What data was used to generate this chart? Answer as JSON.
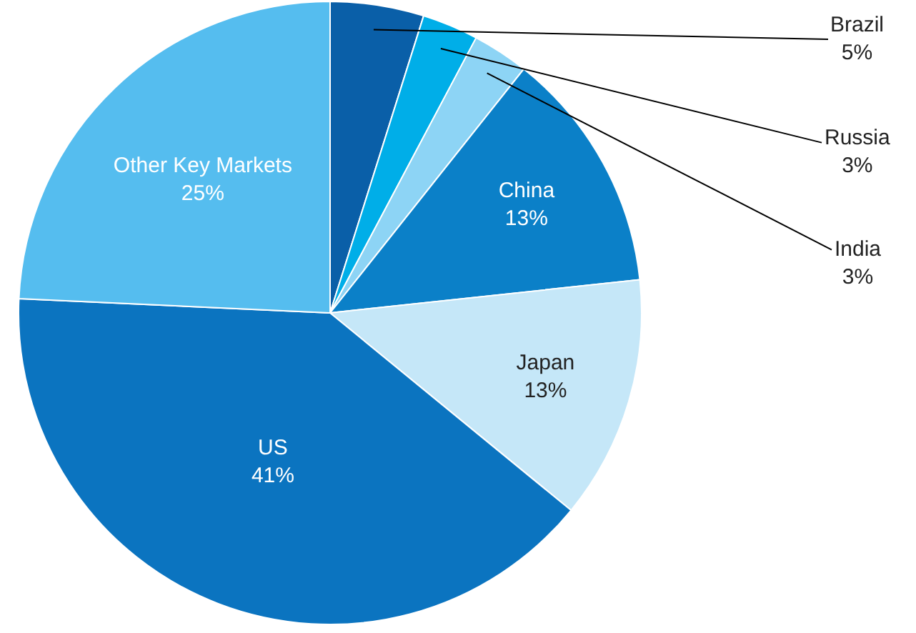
{
  "chart_data": {
    "type": "pie",
    "categories": [
      "Brazil",
      "Russia",
      "India",
      "China",
      "Japan",
      "US",
      "Other Key Markets"
    ],
    "values": [
      5,
      3,
      3,
      13,
      13,
      41,
      25
    ],
    "value_labels": [
      "5%",
      "3%",
      "3%",
      "13%",
      "13%",
      "41%",
      "25%"
    ],
    "colors": [
      "#0a5fa8",
      "#00aee8",
      "#8dd4f5",
      "#0b80c8",
      "#c5e7f8",
      "#0b74c0",
      "#55bdef"
    ],
    "legend": false
  }
}
